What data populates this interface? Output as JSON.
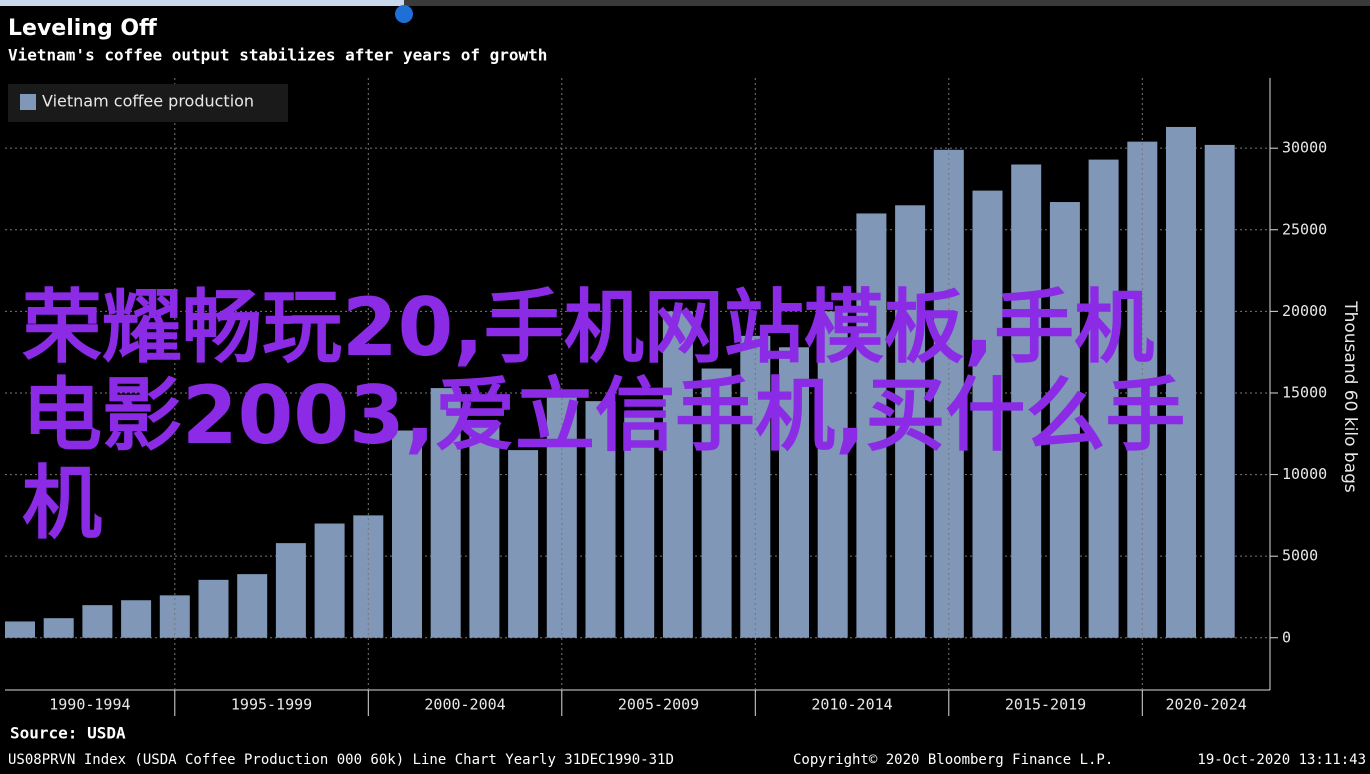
{
  "chart_data": {
    "type": "bar",
    "title": "Leveling Off",
    "subtitle": "Vietnam's coffee output stabilizes after years of growth",
    "legend_label": "Vietnam coffee production",
    "y_axis_label": "Thousand 60 kilo bags",
    "categories": [
      null,
      null,
      null,
      null,
      null,
      null,
      null,
      null,
      null,
      null,
      null,
      null,
      null,
      null,
      null,
      null,
      null,
      null,
      null,
      null,
      null,
      null,
      null,
      null,
      null,
      null,
      null,
      null,
      null,
      null,
      null,
      null
    ],
    "values": [
      1000,
      1200,
      2000,
      2300,
      2600,
      3550,
      3900,
      5800,
      7000,
      7500,
      12700,
      15300,
      13100,
      11500,
      15200,
      14500,
      13800,
      20000,
      16500,
      18500,
      17800,
      20000,
      26000,
      26500,
      29900,
      27400,
      29000,
      26700,
      29300,
      30400,
      31300,
      30200
    ],
    "x_period_labels": [
      "1990-1994",
      "1995-1999",
      "2000-2004",
      "2005-2009",
      "2010-2014",
      "2015-2019",
      "2020-2024"
    ],
    "color": "#8097b8",
    "ylim": [
      -3200,
      34300
    ],
    "yticks": [
      0,
      5000,
      10000,
      15000,
      20000,
      25000,
      30000
    ],
    "grid": true,
    "legend_position": "top-left",
    "source": "Source: USDA",
    "footer_left": "US08PRVN Index (USDA Coffee Production 000 60k) Line Chart  Yearly 31DEC1990-31D",
    "footer_copyright": "Copyright© 2020 Bloomberg Finance L.P.",
    "footer_timestamp": "19-Oct-2020 13:11:43"
  },
  "overlay_text": "荣耀畅玩20,手机网站模板,手机电影2003,爱立信手机,买什么手机"
}
